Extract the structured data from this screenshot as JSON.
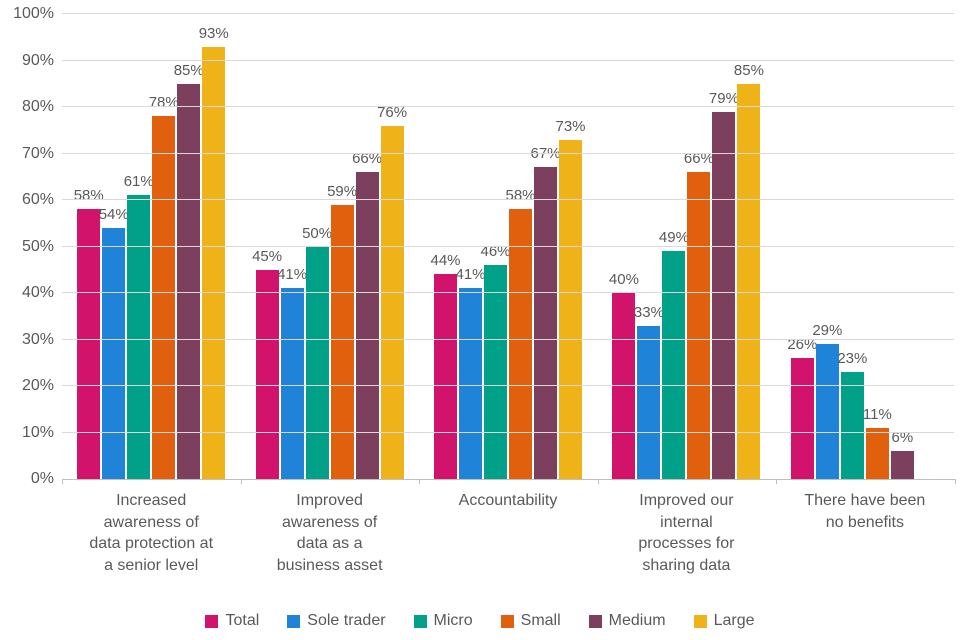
{
  "chart_data": {
    "type": "bar",
    "title": "",
    "xlabel": "",
    "ylabel": "",
    "ylim": [
      0,
      100
    ],
    "ytick_step": 10,
    "ytick_suffix": "%",
    "grid": true,
    "legend_position": "bottom",
    "text_color": "#595959",
    "grid_color": "#d9d9d9",
    "axis_color": "#bfbfbf",
    "categories": [
      "Increased awareness of data protection at a senior level",
      "Improved awareness of data as a business asset",
      "Accountability",
      "Improved our internal processes for sharing data",
      "There have been no benefits"
    ],
    "category_lines": [
      [
        "Increased",
        "awareness of",
        "data protection at",
        "a senior level"
      ],
      [
        "Improved",
        "awareness of",
        "data as a",
        "business asset"
      ],
      [
        "Accountability"
      ],
      [
        "Improved our",
        "internal",
        "processes for",
        "sharing data"
      ],
      [
        "There have been",
        "no benefits"
      ]
    ],
    "series": [
      {
        "name": "Total",
        "color": "#d1136b",
        "values": [
          58,
          45,
          44,
          40,
          26
        ]
      },
      {
        "name": "Sole trader",
        "color": "#1f84d8",
        "values": [
          54,
          41,
          41,
          33,
          29
        ]
      },
      {
        "name": "Micro",
        "color": "#00a188",
        "values": [
          61,
          50,
          46,
          49,
          23
        ]
      },
      {
        "name": "Small",
        "color": "#e0600e",
        "values": [
          78,
          59,
          58,
          66,
          11
        ]
      },
      {
        "name": "Medium",
        "color": "#7d3f5e",
        "values": [
          85,
          66,
          67,
          79,
          6
        ]
      },
      {
        "name": "Large",
        "color": "#f0b219",
        "values": [
          93,
          76,
          73,
          85,
          null
        ]
      }
    ]
  }
}
